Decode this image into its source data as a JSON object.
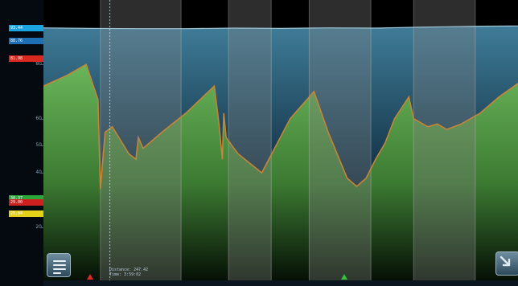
{
  "axis": {
    "ticks": [
      {
        "label": "80",
        "value": 80
      },
      {
        "label": "60",
        "value": 60
      },
      {
        "label": "50",
        "value": 50
      },
      {
        "label": "40",
        "value": 40
      },
      {
        "label": "20",
        "value": 20
      }
    ]
  },
  "markers": [
    {
      "label": "93.44",
      "color": "#1aa5e0",
      "value": 93.4
    },
    {
      "label": "88.76",
      "color": "#1f6fb5",
      "value": 88.8
    },
    {
      "label": "81.98",
      "color": "#d8281f",
      "value": 82.0
    },
    {
      "label": "30.37",
      "color": "#2aa63a",
      "value": 30.4
    },
    {
      "label": "29.00",
      "color": "#cf2020",
      "value": 29.0
    },
    {
      "label": "25.04",
      "color": "#e4d21a",
      "value": 25.0
    }
  ],
  "readout": {
    "distance": "Distance: 247.42",
    "time": "Time: 3:59:02"
  },
  "icons": {
    "menu": "menu-icon",
    "zoom": "zoom-icon",
    "red_marker": "triangle-up-icon",
    "green_marker": "triangle-up-icon"
  },
  "colors": {
    "sky_top": "#3f7c98",
    "sky_bottom": "#123246",
    "ground_top": "#6ab55a",
    "ground_bottom": "#0a1a0a",
    "line": "#c78536",
    "band": "rgba(130,130,130,0.35)",
    "zoom_arrow": "#dfeaf0"
  },
  "chart_data": {
    "type": "area",
    "xlim": [
      0,
      100
    ],
    "ylim": [
      0,
      102
    ],
    "upper_series": {
      "x": [
        0,
        10,
        20,
        30,
        40,
        50,
        60,
        70,
        78,
        85,
        92,
        100
      ],
      "y": [
        93.5,
        93.3,
        93.2,
        93.2,
        93.4,
        93.3,
        93.5,
        93.4,
        93.7,
        93.9,
        94.1,
        94.2
      ]
    },
    "lower_series": {
      "x": [
        0,
        5,
        9,
        11.5,
        12,
        13,
        14.5,
        18,
        19.5,
        20,
        21,
        25,
        30,
        36,
        37,
        37.7,
        38,
        38.5,
        41,
        46,
        52,
        57,
        60,
        64,
        66,
        68,
        70,
        72,
        74,
        77,
        78,
        81,
        83,
        85,
        88,
        92,
        96,
        100
      ],
      "y": [
        72,
        76,
        80,
        67,
        34,
        55,
        57,
        47,
        45,
        53,
        49,
        55,
        62,
        72,
        58,
        45,
        62,
        53,
        47,
        40,
        60,
        70,
        55,
        38,
        35,
        38,
        45,
        51,
        60,
        68,
        60,
        57,
        58,
        56,
        58,
        62,
        68,
        73
      ]
    },
    "shaded_bands": [
      {
        "from": 12,
        "to": 29
      },
      {
        "from": 39,
        "to": 48
      },
      {
        "from": 56,
        "to": 69
      },
      {
        "from": 78,
        "to": 91
      }
    ],
    "cursor_x": 14
  }
}
